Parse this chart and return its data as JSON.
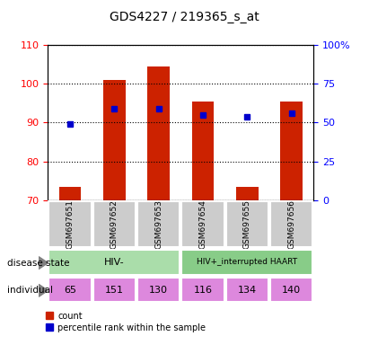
{
  "title": "GDS4227 / 219365_s_at",
  "samples": [
    "GSM697651",
    "GSM697652",
    "GSM697653",
    "GSM697654",
    "GSM697655",
    "GSM697656"
  ],
  "counts": [
    73.5,
    101.0,
    104.5,
    95.5,
    73.5,
    95.5
  ],
  "percentile_ranks": [
    89.5,
    93.5,
    93.5,
    92.0,
    91.5,
    92.5
  ],
  "ylim_left": [
    70,
    110
  ],
  "ylim_right": [
    0,
    100
  ],
  "yticks_left": [
    70,
    80,
    90,
    100,
    110
  ],
  "yticks_right": [
    0,
    25,
    50,
    75,
    100
  ],
  "ytick_labels_right": [
    "0",
    "25",
    "50",
    "75",
    "100%"
  ],
  "individuals": [
    "65",
    "151",
    "130",
    "116",
    "134",
    "140"
  ],
  "individual_color": "#dd88dd",
  "bar_color": "#cc2200",
  "dot_color": "#0000cc",
  "bar_bottom": 70,
  "bar_width": 0.5,
  "hiv_neg_color": "#aaddaa",
  "hiv_pos_color": "#88cc88",
  "sample_box_color": "#cccccc"
}
